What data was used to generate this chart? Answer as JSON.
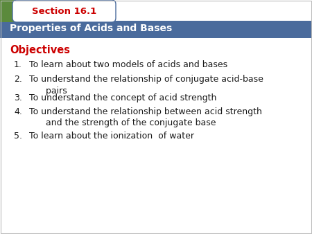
{
  "section_label": "Section 16.1",
  "title": "Properties of Acids and Bases",
  "objectives_label": "Objectives",
  "items": [
    [
      "1.",
      "To learn about two models of acids and bases"
    ],
    [
      "2.",
      "To understand the relationship of conjugate acid-base\n      pairs"
    ],
    [
      "3.",
      "To understand the concept of acid strength"
    ],
    [
      "4.",
      "To understand the relationship between acid strength\n      and the strength of the conjugate base"
    ],
    [
      "5.",
      "To learn about the ionization  of water"
    ]
  ],
  "bg_color": "#ffffff",
  "header_bar_color": "#4a6b9c",
  "section_label_color": "#cc0000",
  "title_text_color": "#ffffff",
  "objectives_color": "#cc0000",
  "item_color": "#1a1a1a",
  "left_stripe_color": "#5b8a3c",
  "tab_fill_color": "#ffffff",
  "tab_border_color": "#4a6b9c"
}
